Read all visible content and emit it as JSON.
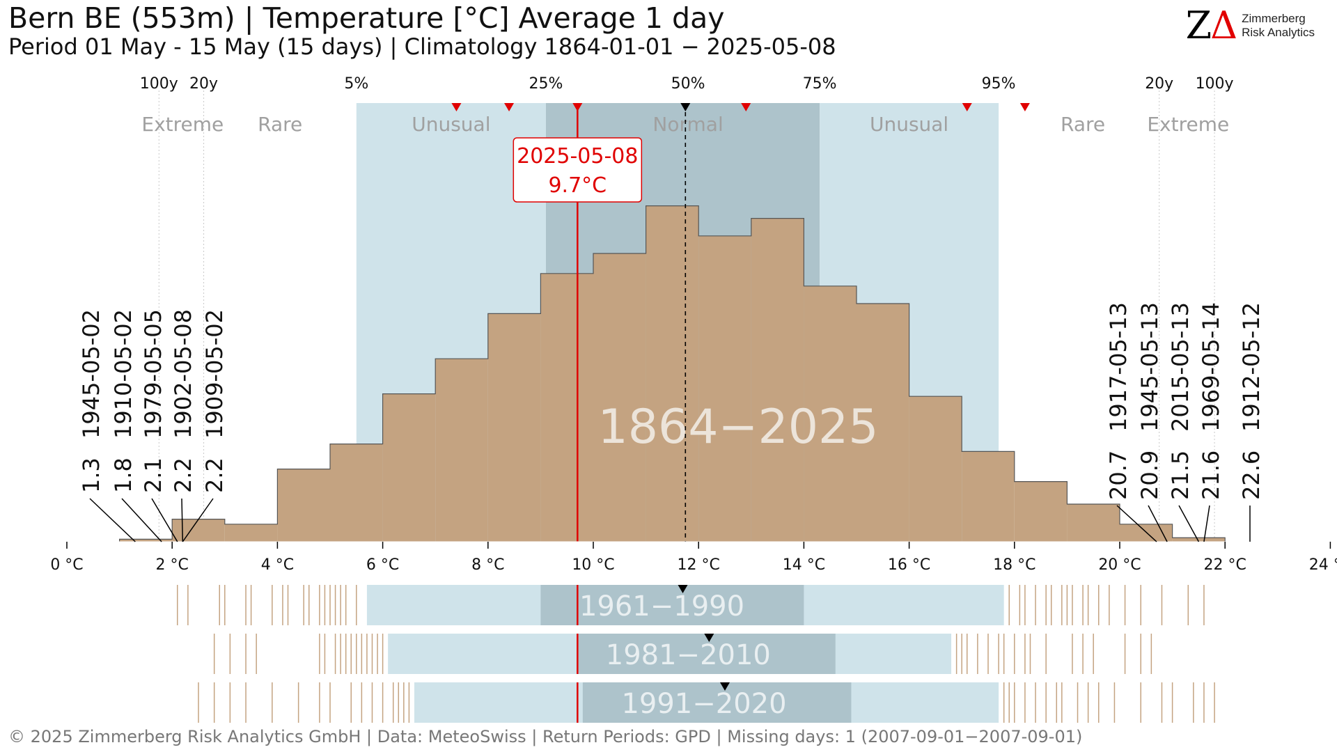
{
  "header": {
    "title": "Bern  BE (553m) | Temperature [°C] Average 1 day",
    "subtitle": "Period 01 May - 15 May (15 days) | Climatology 1864-01-01 − 2025-05-08"
  },
  "logo": {
    "mark_z": "Z",
    "mark_a": "Δ",
    "line1": "Zimmerberg",
    "line2": "Risk Analytics"
  },
  "footer": {
    "text": "©  2025 Zimmerberg Risk Analytics GmbH | Data: MeteoSwiss | Return Periods: GPD | Missing days: 1 (2007-09-01−2007-09-01)"
  },
  "colors": {
    "bar": "#c4a381",
    "bar_edge": "#555555",
    "unusual": "#cfe3ea",
    "normal": "#adc3cb",
    "current": "#e00000",
    "category_text": "#a0a0a0",
    "watermark": "#ece4da"
  },
  "chart_data": {
    "type": "bar",
    "title": "Bern  BE (553m) | Temperature [°C] Average 1 day",
    "xlabel": "",
    "ylabel": "",
    "xlim": [
      0,
      24
    ],
    "x_ticks": [
      0,
      2,
      4,
      6,
      8,
      10,
      12,
      14,
      16,
      18,
      20,
      22,
      24
    ],
    "x_tick_labels": [
      "0 °C",
      "2 °C",
      "4 °C",
      "6 °C",
      "8 °C",
      "10 °C",
      "12 °C",
      "14 °C",
      "16 °C",
      "18 °C",
      "20 °C",
      "22 °C",
      "24 °C"
    ],
    "histogram": {
      "bin_width": 1,
      "bins": [
        {
          "x0": 1,
          "value": 0.5
        },
        {
          "x0": 2,
          "value": 4.5
        },
        {
          "x0": 3,
          "value": 3.5
        },
        {
          "x0": 4,
          "value": 14.5
        },
        {
          "x0": 5,
          "value": 19.5
        },
        {
          "x0": 6,
          "value": 29.5
        },
        {
          "x0": 7,
          "value": 36.5
        },
        {
          "x0": 8,
          "value": 45.5
        },
        {
          "x0": 9,
          "value": 53.5
        },
        {
          "x0": 10,
          "value": 57.5
        },
        {
          "x0": 11,
          "value": 67.0
        },
        {
          "x0": 12,
          "value": 61.0
        },
        {
          "x0": 13,
          "value": 64.5
        },
        {
          "x0": 14,
          "value": 51.0
        },
        {
          "x0": 15,
          "value": 47.5
        },
        {
          "x0": 16,
          "value": 29.0
        },
        {
          "x0": 17,
          "value": 18.0
        },
        {
          "x0": 18,
          "value": 12.0
        },
        {
          "x0": 19,
          "value": 7.5
        },
        {
          "x0": 20,
          "value": 3.5
        },
        {
          "x0": 21,
          "value": 0.8
        }
      ],
      "ylim": [
        0,
        70
      ]
    },
    "percentile_bands": [
      {
        "from": 5.5,
        "to": 9.1,
        "class": "unusual"
      },
      {
        "from": 9.1,
        "to": 14.3,
        "class": "normal"
      },
      {
        "from": 14.3,
        "to": 17.7,
        "class": "unusual"
      }
    ],
    "percentile_ticks": [
      {
        "label": "100y",
        "x": 1.75
      },
      {
        "label": "20y",
        "x": 2.6
      },
      {
        "label": "5%",
        "x": 5.5
      },
      {
        "label": "25%",
        "x": 9.1
      },
      {
        "label": "50%",
        "x": 11.8
      },
      {
        "label": "75%",
        "x": 14.3
      },
      {
        "label": "95%",
        "x": 17.7
      },
      {
        "label": "20y",
        "x": 20.75
      },
      {
        "label": "100y",
        "x": 21.8
      }
    ],
    "category_labels": [
      {
        "label": "Extreme",
        "x": 2.2
      },
      {
        "label": "Rare",
        "x": 4.05
      },
      {
        "label": "Unusual",
        "x": 7.3
      },
      {
        "label": "Normal",
        "x": 11.8
      },
      {
        "label": "Unusual",
        "x": 16.0
      },
      {
        "label": "Rare",
        "x": 19.3
      },
      {
        "label": "Extreme",
        "x": 21.3
      }
    ],
    "red_markers": [
      7.4,
      8.4,
      9.7,
      12.9,
      17.1,
      18.2
    ],
    "median_marker": 11.75,
    "current": {
      "date": "2025-05-08",
      "value_label": "9.7°C",
      "value": 9.7
    },
    "cold_extremes": [
      {
        "date": "1945-05-02",
        "value": 1.3
      },
      {
        "date": "1910-05-02",
        "value": 1.8
      },
      {
        "date": "1979-05-05",
        "value": 2.1
      },
      {
        "date": "1902-05-08",
        "value": 2.2
      },
      {
        "date": "1909-05-02",
        "value": 2.2
      }
    ],
    "warm_extremes": [
      {
        "date": "1917-05-13",
        "value": 20.7
      },
      {
        "date": "1945-05-13",
        "value": 20.9
      },
      {
        "date": "2015-05-13",
        "value": 21.5
      },
      {
        "date": "1969-05-14",
        "value": 21.6
      },
      {
        "date": "1912-05-12",
        "value": 22.6
      }
    ],
    "watermark": "1864−2025",
    "climate_periods": [
      {
        "label": "1961−1990",
        "p5": 5.7,
        "p25": 9.0,
        "p75": 14.0,
        "p95": 17.8,
        "median": 11.7,
        "ticks": [
          2.1,
          2.3,
          2.9,
          3.0,
          3.4,
          3.5,
          3.9,
          4.1,
          4.2,
          4.5,
          4.6,
          4.8,
          4.9,
          5.0,
          5.1,
          5.2,
          5.3,
          5.5,
          17.9,
          18.1,
          18.2,
          18.4,
          18.6,
          18.7,
          18.9,
          19.0,
          19.1,
          19.3,
          19.4,
          19.6,
          19.8,
          20.1,
          20.4,
          20.8,
          21.3,
          21.6
        ]
      },
      {
        "label": "1981−2010",
        "p5": 6.1,
        "p25": 9.7,
        "p75": 14.6,
        "p95": 16.8,
        "median": 12.2,
        "ticks": [
          2.8,
          3.1,
          3.4,
          3.6,
          4.8,
          4.9,
          5.1,
          5.2,
          5.3,
          5.4,
          5.5,
          5.6,
          5.7,
          5.8,
          5.9,
          6.0,
          16.9,
          17.0,
          17.1,
          17.3,
          17.5,
          17.7,
          17.8,
          18.0,
          18.2,
          18.3,
          18.6,
          19.1,
          19.3,
          19.5,
          20.1,
          20.4,
          20.6
        ]
      },
      {
        "label": "1991−2020",
        "p5": 6.6,
        "p25": 9.8,
        "p75": 14.9,
        "p95": 17.7,
        "median": 12.5,
        "ticks": [
          2.5,
          2.8,
          3.1,
          3.4,
          3.9,
          4.4,
          4.8,
          5.0,
          5.4,
          5.6,
          5.8,
          6.0,
          6.2,
          6.3,
          6.4,
          6.5,
          17.8,
          17.9,
          18.0,
          18.2,
          18.4,
          18.6,
          18.8,
          18.9,
          19.2,
          19.4,
          19.6,
          19.9,
          20.4,
          20.8,
          21.0,
          21.4,
          21.6,
          21.8
        ]
      }
    ]
  }
}
